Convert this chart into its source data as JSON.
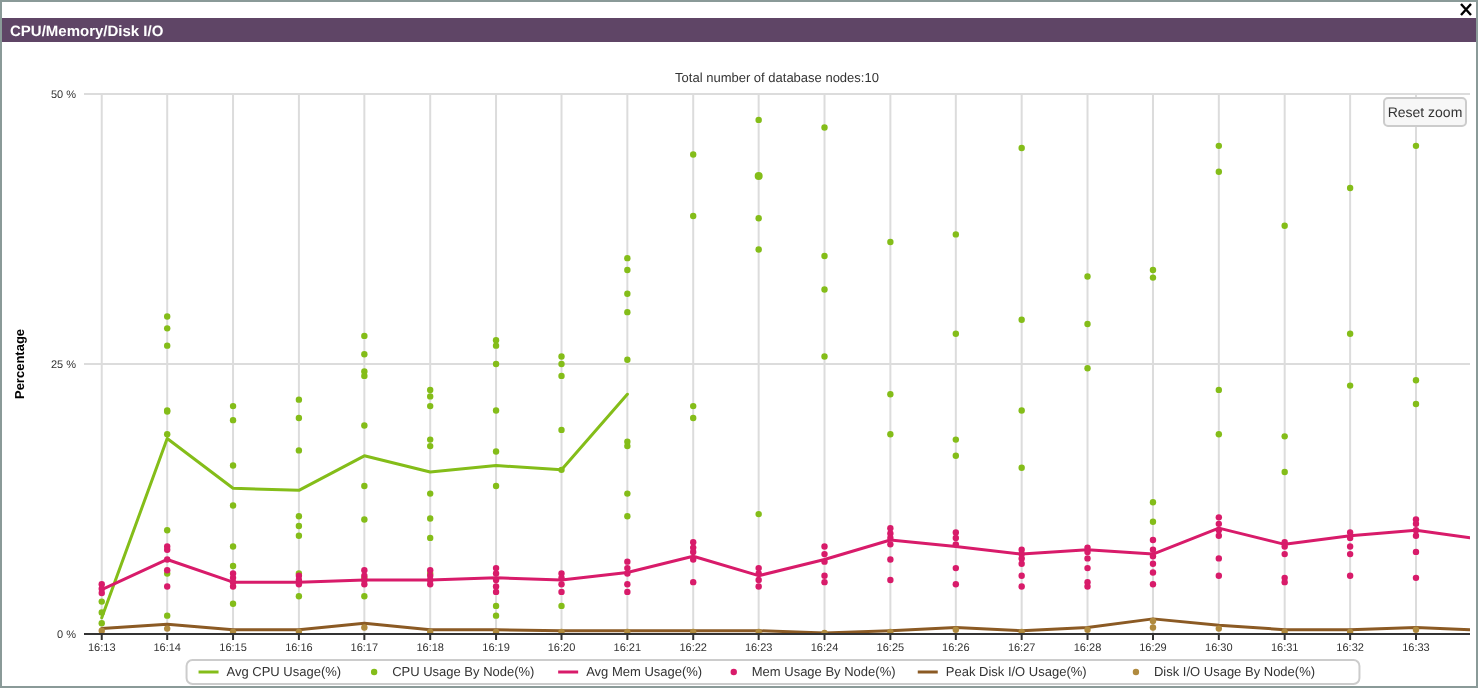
{
  "chart_data": {
    "type": "line",
    "title": "CPU/Memory/Disk I/O",
    "subtitle": "Total number of database nodes:10",
    "ylabel": "Percentage",
    "annotations": [
      "Reset zoom"
    ],
    "xlim": [
      16.2122,
      16.5637
    ],
    "xticks": [
      {
        "value": 16.2167,
        "label": "16:13"
      },
      {
        "value": 16.2333,
        "label": "16:14"
      },
      {
        "value": 16.25,
        "label": "16:15"
      },
      {
        "value": 16.2667,
        "label": "16:16"
      },
      {
        "value": 16.2833,
        "label": "16:17"
      },
      {
        "value": 16.3,
        "label": "16:18"
      },
      {
        "value": 16.3167,
        "label": "16:19"
      },
      {
        "value": 16.3333,
        "label": "16:20"
      },
      {
        "value": 16.35,
        "label": "16:21"
      },
      {
        "value": 16.3667,
        "label": "16:22"
      },
      {
        "value": 16.3833,
        "label": "16:23"
      },
      {
        "value": 16.4,
        "label": "16:24"
      },
      {
        "value": 16.4167,
        "label": "16:25"
      },
      {
        "value": 16.4333,
        "label": "16:26"
      },
      {
        "value": 16.45,
        "label": "16:27"
      },
      {
        "value": 16.4667,
        "label": "16:28"
      },
      {
        "value": 16.4833,
        "label": "16:29"
      },
      {
        "value": 16.5,
        "label": "16:30"
      },
      {
        "value": 16.5167,
        "label": "16:31"
      },
      {
        "value": 16.5333,
        "label": "16:32"
      },
      {
        "value": 16.55,
        "label": "16:33"
      }
    ],
    "ylim": [
      0,
      50
    ],
    "yticks": [
      {
        "value": 0,
        "label": "0 %"
      },
      {
        "value": 25,
        "label": "25 %"
      },
      {
        "value": 50,
        "label": "50 %"
      }
    ],
    "grid": true,
    "legend": "bottom",
    "line_style": "solid",
    "x": [
      16.2167,
      16.2333,
      16.25,
      16.2667,
      16.2833,
      16.3,
      16.3167,
      16.3333,
      16.35,
      16.3667,
      16.3833,
      16.4,
      16.4167,
      16.4333,
      16.45,
      16.4667,
      16.4833,
      16.5,
      16.5167,
      16.5333,
      16.55,
      16.5637
    ],
    "series": [
      {
        "name": "Avg CPU Usage(%)",
        "marker": "none",
        "color": "#84bd19",
        "values": [
          1.5,
          18.1,
          13.5,
          13.3,
          16.5,
          15,
          15.6,
          15.2,
          22.2,
          null,
          42.4,
          null,
          null,
          null,
          null,
          null,
          null,
          null,
          null,
          null,
          null,
          null
        ]
      },
      {
        "name": "CPU Usage By Node(%)",
        "type": "scatter",
        "marker": "circle",
        "color": "#84bd19",
        "x": [
          16.2167,
          16.2167,
          16.2167,
          16.2333,
          16.2333,
          16.2333,
          16.2333,
          16.2333,
          16.2333,
          16.2333,
          16.2333,
          16.2333,
          16.25,
          16.25,
          16.25,
          16.25,
          16.25,
          16.25,
          16.25,
          16.2667,
          16.2667,
          16.2667,
          16.2667,
          16.2667,
          16.2667,
          16.2667,
          16.2667,
          16.2833,
          16.2833,
          16.2833,
          16.2833,
          16.2833,
          16.2833,
          16.2833,
          16.2833,
          16.2833,
          16.3,
          16.3,
          16.3,
          16.3,
          16.3,
          16.3,
          16.3,
          16.3,
          16.3,
          16.3167,
          16.3167,
          16.3167,
          16.3167,
          16.3167,
          16.3167,
          16.3167,
          16.3167,
          16.3333,
          16.3333,
          16.3333,
          16.3333,
          16.3333,
          16.3333,
          16.35,
          16.35,
          16.35,
          16.35,
          16.35,
          16.35,
          16.35,
          16.35,
          16.35,
          16.3667,
          16.3667,
          16.3667,
          16.3667,
          16.3833,
          16.3833,
          16.3833,
          16.3833,
          16.4,
          16.4,
          16.4,
          16.4,
          16.4167,
          16.4167,
          16.4167,
          16.4333,
          16.4333,
          16.4333,
          16.4333,
          16.45,
          16.45,
          16.45,
          16.45,
          16.4667,
          16.4667,
          16.4667,
          16.4833,
          16.4833,
          16.4833,
          16.4833,
          16.5,
          16.5,
          16.5,
          16.5,
          16.5167,
          16.5167,
          16.5167,
          16.5333,
          16.5333,
          16.5333,
          16.55,
          16.55,
          16.55
        ],
        "values": [
          3.0,
          2.0,
          1.0,
          29.4,
          28.3,
          26.7,
          20.7,
          20.6,
          18.5,
          9.6,
          5.6,
          1.7,
          21.1,
          19.8,
          15.6,
          11.9,
          8.1,
          6.3,
          2.8,
          21.7,
          20.0,
          17.0,
          10.9,
          10.0,
          9.1,
          5.6,
          3.5,
          27.6,
          25.9,
          24.3,
          23.9,
          19.3,
          13.7,
          10.6,
          5.2,
          3.5,
          22.6,
          22.0,
          21.1,
          18.0,
          17.4,
          13.0,
          10.7,
          8.9,
          5.6,
          27.2,
          26.7,
          25.0,
          20.7,
          16.9,
          13.7,
          2.6,
          1.7,
          25.7,
          25.0,
          23.9,
          18.9,
          15.2,
          2.6,
          34.8,
          33.7,
          31.5,
          29.8,
          25.4,
          17.8,
          17.4,
          13.0,
          10.9,
          44.4,
          38.7,
          21.1,
          20.0,
          47.6,
          38.5,
          35.6,
          11.1,
          46.9,
          35.0,
          31.9,
          25.7,
          36.3,
          22.2,
          18.5,
          37.0,
          27.8,
          18.0,
          16.5,
          45.0,
          29.1,
          20.7,
          15.4,
          33.1,
          28.7,
          24.6,
          33.7,
          33.0,
          12.2,
          10.4,
          45.2,
          42.8,
          22.6,
          18.5,
          37.8,
          18.3,
          15.0,
          41.3,
          27.8,
          23.0,
          45.2,
          23.5,
          21.3
        ]
      },
      {
        "name": "Avg Mem Usage(%)",
        "marker": "none",
        "color": "#d81b6a",
        "values": [
          4.1,
          6.9,
          4.8,
          4.8,
          5.0,
          5.0,
          5.2,
          5.0,
          5.7,
          7.2,
          5.4,
          6.9,
          8.7,
          8.1,
          7.4,
          7.8,
          7.4,
          9.8,
          8.3,
          9.1,
          9.6,
          8.9
        ]
      },
      {
        "name": "Mem Usage By Node(%)",
        "type": "scatter",
        "marker": "circle",
        "color": "#d81b6a",
        "x": [
          16.2167,
          16.2167,
          16.2167,
          16.2333,
          16.2333,
          16.2333,
          16.2333,
          16.2333,
          16.25,
          16.25,
          16.25,
          16.25,
          16.2667,
          16.2667,
          16.2667,
          16.2833,
          16.2833,
          16.2833,
          16.2833,
          16.3,
          16.3,
          16.3,
          16.3,
          16.3167,
          16.3167,
          16.3167,
          16.3167,
          16.3167,
          16.3333,
          16.3333,
          16.3333,
          16.3333,
          16.35,
          16.35,
          16.35,
          16.35,
          16.35,
          16.3667,
          16.3667,
          16.3667,
          16.3667,
          16.3667,
          16.3833,
          16.3833,
          16.3833,
          16.3833,
          16.4,
          16.4,
          16.4,
          16.4,
          16.4,
          16.4167,
          16.4167,
          16.4167,
          16.4167,
          16.4167,
          16.4167,
          16.4333,
          16.4333,
          16.4333,
          16.4333,
          16.4333,
          16.45,
          16.45,
          16.45,
          16.45,
          16.45,
          16.45,
          16.4667,
          16.4667,
          16.4667,
          16.4667,
          16.4667,
          16.4667,
          16.4833,
          16.4833,
          16.4833,
          16.4833,
          16.4833,
          16.4833,
          16.5,
          16.5,
          16.5,
          16.5,
          16.5,
          16.5,
          16.5167,
          16.5167,
          16.5167,
          16.5167,
          16.5167,
          16.5333,
          16.5333,
          16.5333,
          16.5333,
          16.5333,
          16.55,
          16.55,
          16.55,
          16.55,
          16.55,
          16.55
        ],
        "values": [
          4.6,
          4.2,
          3.8,
          8.1,
          7.8,
          6.9,
          5.9,
          4.4,
          5.6,
          5.2,
          4.8,
          4.4,
          5.4,
          5.0,
          4.6,
          5.9,
          5.4,
          5.0,
          4.6,
          5.9,
          5.4,
          5.0,
          4.6,
          6.1,
          5.6,
          5.0,
          4.4,
          3.9,
          5.6,
          5.2,
          4.6,
          3.9,
          6.7,
          6.1,
          5.6,
          4.6,
          3.9,
          8.5,
          8.0,
          7.6,
          6.9,
          4.8,
          6.1,
          5.6,
          5.0,
          4.4,
          8.1,
          7.4,
          6.7,
          5.4,
          4.8,
          9.8,
          9.3,
          8.9,
          8.3,
          6.9,
          5.0,
          9.4,
          8.9,
          8.3,
          6.1,
          4.6,
          7.8,
          7.4,
          7.0,
          6.5,
          5.4,
          4.4,
          8.0,
          7.6,
          7.0,
          6.1,
          4.8,
          4.4,
          8.7,
          7.8,
          7.2,
          6.5,
          5.7,
          4.6,
          10.8,
          10.2,
          9.6,
          9.1,
          7.0,
          5.4,
          8.5,
          8.1,
          7.4,
          5.2,
          4.8,
          9.4,
          8.9,
          8.1,
          7.4,
          5.4,
          10.6,
          10.2,
          9.6,
          9.1,
          7.6,
          5.2
        ]
      },
      {
        "name": "Peak Disk I/O Usage(%)",
        "marker": "none",
        "color": "#8b5a24",
        "values": [
          0.5,
          0.9,
          0.4,
          0.4,
          1.0,
          0.4,
          0.4,
          0.3,
          0.3,
          0.3,
          0.3,
          0.1,
          0.3,
          0.6,
          0.3,
          0.6,
          1.4,
          0.8,
          0.4,
          0.4,
          0.6,
          0.4
        ]
      },
      {
        "name": "Disk I/O Usage By Node(%)",
        "type": "scatter",
        "marker": "circle",
        "color": "#b08a3e",
        "x": [
          16.2167,
          16.2333,
          16.25,
          16.2667,
          16.2833,
          16.3,
          16.3167,
          16.3333,
          16.35,
          16.3667,
          16.3833,
          16.4,
          16.4167,
          16.4333,
          16.45,
          16.4667,
          16.4833,
          16.4833,
          16.5,
          16.5167,
          16.5333,
          16.55
        ],
        "values": [
          0.3,
          0.5,
          0.2,
          0.2,
          0.6,
          0.2,
          0.2,
          0.2,
          0.2,
          0.2,
          0.2,
          0.1,
          0.2,
          0.4,
          0.2,
          0.4,
          1.2,
          0.6,
          0.5,
          0.2,
          0.2,
          0.4
        ]
      }
    ]
  }
}
